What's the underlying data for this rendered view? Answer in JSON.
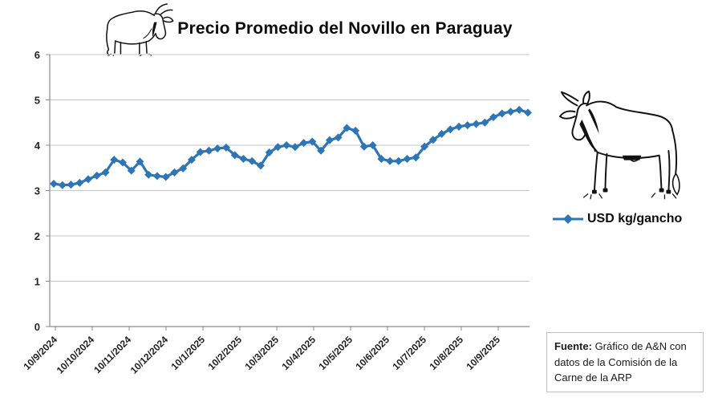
{
  "title": "Precio Promedio del Novillo en Paraguay",
  "legend": {
    "label": "USD kg/gancho"
  },
  "source_box": {
    "label": "Fuente:",
    "text": " Gráfico de A&N con datos de la Comisión de la Carne de la ARP"
  },
  "colors": {
    "line": "#2E75B6",
    "grid": "#C6C6C6",
    "axis": "#8C8C8C",
    "tick_text": "#262626"
  },
  "chart_data": {
    "type": "line",
    "title": "Precio Promedio del Novillo en Paraguay",
    "ylabel": "",
    "xlabel": "",
    "ylim": [
      0,
      6
    ],
    "y_ticks": [
      0,
      1,
      2,
      3,
      4,
      5,
      6
    ],
    "grid": true,
    "marker": "diamond",
    "line_color": "#2E75B6",
    "legend_position": "right",
    "x_tick_labels": [
      "10/9/2024",
      "10/10/2024",
      "10/11/2024",
      "10/12/2024",
      "10/1/2025",
      "10/2/2025",
      "10/3/2025",
      "10/4/2025",
      "10/5/2025",
      "10/6/2025",
      "10/7/2025",
      "10/8/2025",
      "10/9/2025"
    ],
    "x_cadence_note": "weekly data points between monthly d/m/yyyy ticks",
    "series": [
      {
        "name": "USD kg/gancho",
        "values": [
          3.15,
          3.12,
          3.13,
          3.17,
          3.25,
          3.33,
          3.4,
          3.68,
          3.62,
          3.44,
          3.64,
          3.35,
          3.32,
          3.3,
          3.4,
          3.49,
          3.68,
          3.85,
          3.88,
          3.93,
          3.95,
          3.78,
          3.7,
          3.65,
          3.55,
          3.84,
          3.96,
          4.0,
          3.96,
          4.05,
          4.08,
          3.88,
          4.11,
          4.17,
          4.38,
          4.32,
          3.97,
          4.0,
          3.7,
          3.65,
          3.65,
          3.7,
          3.73,
          3.97,
          4.12,
          4.25,
          4.35,
          4.41,
          4.44,
          4.47,
          4.5,
          4.62,
          4.7,
          4.74,
          4.78,
          4.72
        ]
      }
    ]
  }
}
